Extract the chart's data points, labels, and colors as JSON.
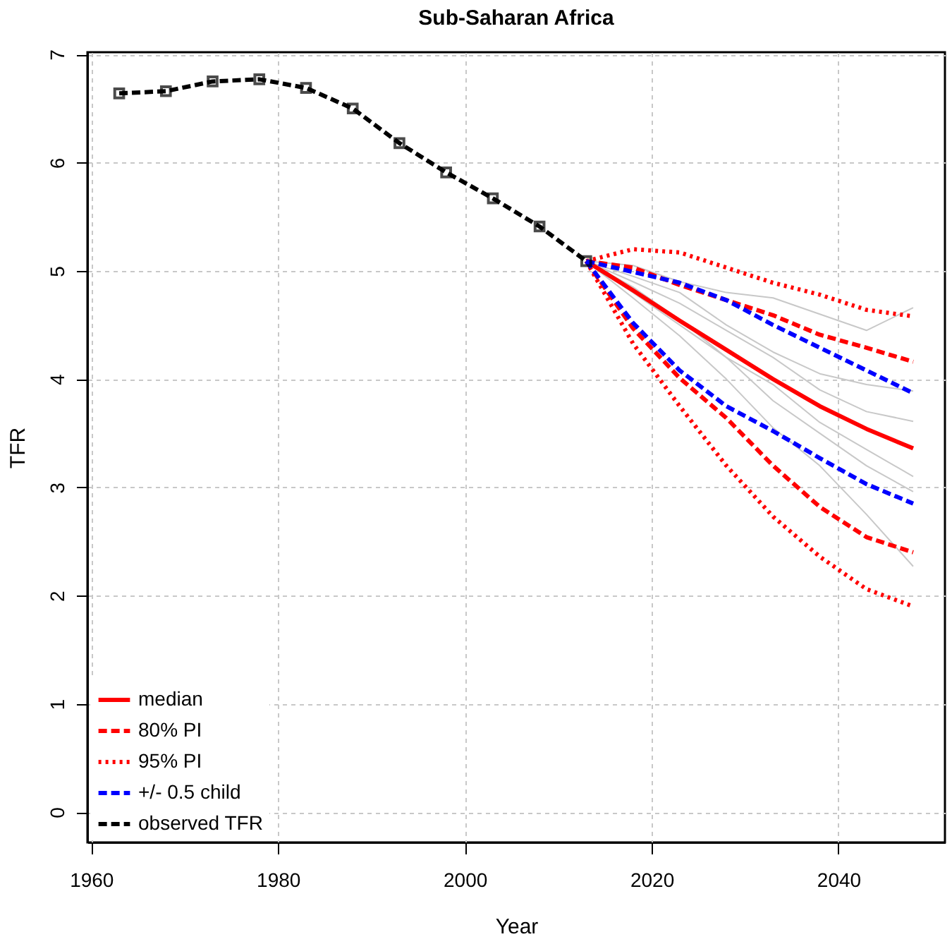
{
  "chart_data": {
    "type": "line",
    "title": "Sub-Saharan Africa",
    "xlabel": "Year",
    "ylabel": "TFR",
    "xlim": [
      1959.6,
      2051.4
    ],
    "ylim": [
      -0.28,
      7.02
    ],
    "xticks": [
      1960,
      1980,
      2000,
      2020,
      2040
    ],
    "yticks": [
      0,
      1,
      2,
      3,
      4,
      5,
      6,
      7
    ],
    "grid": true,
    "legend": "bottom left",
    "series": [
      {
        "color": "#c8c8c8",
        "line_style": "solid",
        "marker": "none",
        "x": [
          2013,
          2018,
          2023,
          2028,
          2033,
          2038,
          2043,
          2048
        ],
        "values": [
          5.09,
          5.05,
          4.9,
          4.8,
          4.75,
          4.6,
          4.45,
          4.66
        ]
      },
      {
        "color": "#c8c8c8",
        "line_style": "solid",
        "marker": "none",
        "x": [
          2013,
          2018,
          2023,
          2028,
          2033,
          2038,
          2043,
          2048
        ],
        "values": [
          5.09,
          4.9,
          4.7,
          4.45,
          4.2,
          3.9,
          3.7,
          3.61
        ]
      },
      {
        "color": "#c8c8c8",
        "line_style": "solid",
        "marker": "none",
        "x": [
          2013,
          2018,
          2023,
          2028,
          2033,
          2038,
          2043,
          2048
        ],
        "values": [
          5.09,
          4.85,
          4.55,
          4.2,
          3.8,
          3.5,
          3.2,
          2.96
        ]
      },
      {
        "color": "#c8c8c8",
        "line_style": "solid",
        "marker": "none",
        "x": [
          2013,
          2018,
          2023,
          2028,
          2033,
          2038,
          2043,
          2048
        ],
        "values": [
          5.09,
          4.75,
          4.4,
          4.0,
          3.55,
          3.2,
          2.75,
          2.27
        ]
      },
      {
        "color": "#c8c8c8",
        "line_style": "solid",
        "marker": "none",
        "x": [
          2013,
          2018,
          2023,
          2028,
          2033,
          2038,
          2043,
          2048
        ],
        "values": [
          5.09,
          4.95,
          4.8,
          4.5,
          4.25,
          4.05,
          3.95,
          3.89
        ]
      },
      {
        "color": "#c8c8c8",
        "line_style": "solid",
        "marker": "none",
        "x": [
          2013,
          2018,
          2023,
          2028,
          2033,
          2038,
          2043,
          2048
        ],
        "values": [
          5.09,
          4.8,
          4.5,
          4.2,
          3.95,
          3.6,
          3.35,
          3.1
        ]
      },
      {
        "name": "median",
        "color": "#ff0000",
        "line_style": "solid",
        "marker": "none",
        "x": [
          2013,
          2018,
          2023,
          2028,
          2033,
          2038,
          2043,
          2048
        ],
        "values": [
          5.09,
          4.82,
          4.54,
          4.27,
          4.0,
          3.75,
          3.54,
          3.36
        ]
      },
      {
        "name": "80% PI",
        "color": "#ff0000",
        "line_style": "dashed",
        "marker": "none",
        "x": [
          2013,
          2018,
          2023,
          2028,
          2033,
          2038,
          2043,
          2048
        ],
        "values": [
          5.09,
          5.03,
          4.87,
          4.73,
          4.59,
          4.41,
          4.29,
          4.16
        ]
      },
      {
        "color": "#ff0000",
        "line_style": "dashed",
        "marker": "none",
        "x": [
          2013,
          2018,
          2023,
          2028,
          2033,
          2038,
          2043,
          2048
        ],
        "values": [
          5.09,
          4.47,
          4.01,
          3.64,
          3.2,
          2.82,
          2.54,
          2.4
        ]
      },
      {
        "name": "95% PI",
        "color": "#ff0000",
        "line_style": "dotted",
        "marker": "none",
        "x": [
          2013,
          2018,
          2023,
          2028,
          2033,
          2038,
          2043,
          2048
        ],
        "values": [
          5.09,
          5.2,
          5.17,
          5.03,
          4.89,
          4.78,
          4.64,
          4.58
        ]
      },
      {
        "color": "#ff0000",
        "line_style": "dotted",
        "marker": "none",
        "x": [
          2013,
          2018,
          2023,
          2028,
          2033,
          2038,
          2043,
          2048
        ],
        "values": [
          5.09,
          4.33,
          3.75,
          3.2,
          2.73,
          2.36,
          2.06,
          1.9
        ]
      },
      {
        "name": "+/- 0.5 child",
        "color": "#0000ff",
        "line_style": "dashed",
        "marker": "none",
        "x": [
          2013,
          2018,
          2023,
          2028,
          2033,
          2038,
          2043,
          2048
        ],
        "values": [
          5.09,
          4.99,
          4.89,
          4.73,
          4.5,
          4.29,
          4.08,
          3.87
        ]
      },
      {
        "color": "#0000ff",
        "line_style": "dashed",
        "marker": "none",
        "x": [
          2013,
          2018,
          2023,
          2028,
          2033,
          2038,
          2043,
          2048
        ],
        "values": [
          5.09,
          4.52,
          4.08,
          3.75,
          3.52,
          3.27,
          3.03,
          2.85
        ]
      },
      {
        "name": "observed TFR",
        "color": "#000000",
        "line_style": "dashed",
        "marker": "square",
        "x": [
          1963,
          1968,
          1973,
          1978,
          1983,
          1988,
          1993,
          1998,
          2003,
          2008,
          2013
        ],
        "values": [
          6.64,
          6.66,
          6.75,
          6.77,
          6.69,
          6.5,
          6.18,
          5.91,
          5.67,
          5.41,
          5.09
        ]
      }
    ]
  }
}
